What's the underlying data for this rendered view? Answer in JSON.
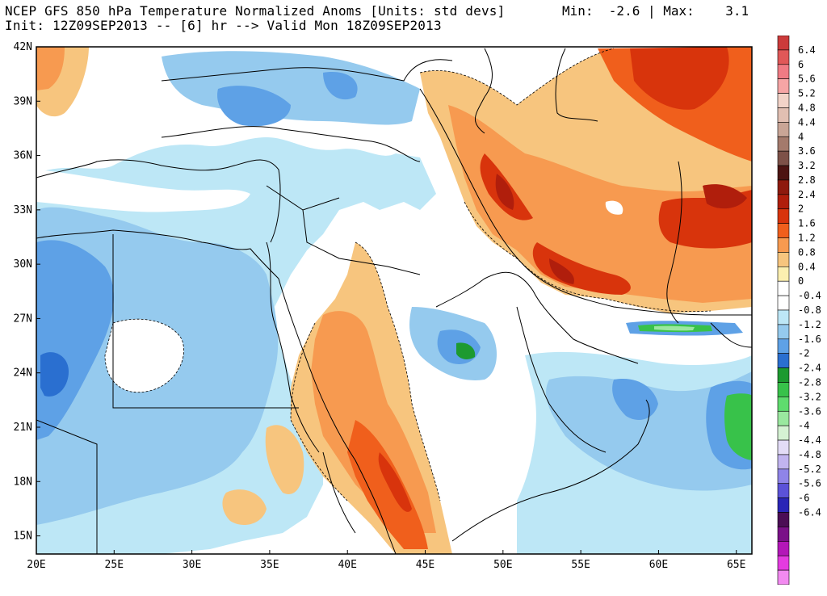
{
  "header": {
    "title_line1": "NCEP GFS 850 hPa Temperature Normalized Anoms [Units: std devs]",
    "title_line2": "Init: 12Z09SEP2013 -- [6] hr --> Valid Mon 18Z09SEP2013",
    "minmax": "Min:  -2.6 | Max:    3.1"
  },
  "map": {
    "lon_labels": [
      "20E",
      "25E",
      "30E",
      "35E",
      "40E",
      "45E",
      "50E",
      "55E",
      "60E",
      "65E"
    ],
    "lat_labels": [
      "42N",
      "39N",
      "36N",
      "33N",
      "30N",
      "27N",
      "24N",
      "21N",
      "18N",
      "15N"
    ],
    "lon_range": [
      20,
      66
    ],
    "lat_range": [
      14,
      42
    ]
  },
  "colorbar": {
    "levels": [
      {
        "label": "6.4",
        "color": "#cc3b3b"
      },
      {
        "label": "6",
        "color": "#e05858"
      },
      {
        "label": "5.6",
        "color": "#f07b84"
      },
      {
        "label": "5.2",
        "color": "#f6a5a5"
      },
      {
        "label": "4.8",
        "color": "#f2d3c8"
      },
      {
        "label": "4.4",
        "color": "#e1bfb2"
      },
      {
        "label": "4",
        "color": "#c9a596"
      },
      {
        "label": "3.6",
        "color": "#a47a6c"
      },
      {
        "label": "3.2",
        "color": "#7d5148"
      },
      {
        "label": "2.8",
        "color": "#4d1412"
      },
      {
        "label": "2.4",
        "color": "#8e1a0e"
      },
      {
        "label": "2",
        "color": "#b01e0c"
      },
      {
        "label": "1.6",
        "color": "#d8340c"
      },
      {
        "label": "1.2",
        "color": "#f05f1c"
      },
      {
        "label": "0.8",
        "color": "#f79a50"
      },
      {
        "label": "0.4",
        "color": "#f7c57e"
      },
      {
        "label": "0",
        "color": "#fbefb0"
      },
      {
        "label": "-0.4",
        "color": "#ffffff"
      },
      {
        "label": "-0.8",
        "color": "#ffffff"
      },
      {
        "label": "-1.2",
        "color": "#bde7f6"
      },
      {
        "label": "-1.6",
        "color": "#95caee"
      },
      {
        "label": "-2",
        "color": "#5ea1e6"
      },
      {
        "label": "-2.4",
        "color": "#2a6fd0"
      },
      {
        "label": "-2.8",
        "color": "#1d9a30"
      },
      {
        "label": "-3.2",
        "color": "#38c24a"
      },
      {
        "label": "-3.6",
        "color": "#5fdc6e"
      },
      {
        "label": "-4",
        "color": "#9ae89f"
      },
      {
        "label": "-4.4",
        "color": "#d5f2d3"
      },
      {
        "label": "-4.8",
        "color": "#e3dcf7"
      },
      {
        "label": "-5.2",
        "color": "#c1b4f0"
      },
      {
        "label": "-5.6",
        "color": "#8f84e8"
      },
      {
        "label": "-6",
        "color": "#5b52d8"
      },
      {
        "label": "-6.4",
        "color": "#2a25b6"
      },
      {
        "label": "",
        "color": "#4b0d55"
      },
      {
        "label": "",
        "color": "#7a1088"
      },
      {
        "label": "",
        "color": "#b317b8"
      },
      {
        "label": "",
        "color": "#e43be0"
      },
      {
        "label": "",
        "color": "#f28af0"
      }
    ]
  }
}
